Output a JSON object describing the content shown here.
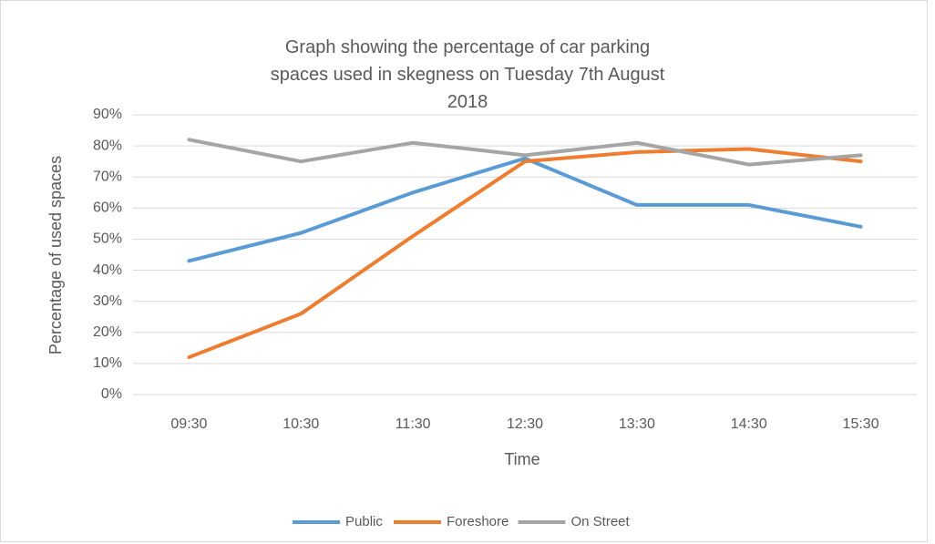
{
  "chart_data": {
    "type": "line",
    "title": "Graph showing the percentage of car parking spaces used in skegness on Tuesday 7th August 2018",
    "x_label": "Time",
    "y_label": "Percentage of used spaces",
    "categories": [
      "09:30",
      "10:30",
      "11:30",
      "12:30",
      "13:30",
      "14:30",
      "15:30"
    ],
    "series": [
      {
        "name": "Public",
        "color": "#5b9bd5",
        "values": [
          43,
          52,
          65,
          76,
          61,
          61,
          54
        ]
      },
      {
        "name": "Foreshore",
        "color": "#ed7d31",
        "values": [
          12,
          26,
          51,
          75,
          78,
          79,
          75
        ]
      },
      {
        "name": "On Street",
        "color": "#a5a5a5",
        "values": [
          82,
          75,
          81,
          77,
          81,
          74,
          77
        ]
      }
    ],
    "ylim": [
      0,
      90
    ],
    "yticks": [
      {
        "value": 0,
        "label": "0%"
      },
      {
        "value": 10,
        "label": "10%"
      },
      {
        "value": 20,
        "label": "20%"
      },
      {
        "value": 30,
        "label": "30%"
      },
      {
        "value": 40,
        "label": "40%"
      },
      {
        "value": 50,
        "label": "50%"
      },
      {
        "value": 60,
        "label": "60%"
      },
      {
        "value": 70,
        "label": "70%"
      },
      {
        "value": 80,
        "label": "80%"
      },
      {
        "value": 90,
        "label": "90%"
      }
    ],
    "grid": true,
    "legend": "bottom"
  }
}
